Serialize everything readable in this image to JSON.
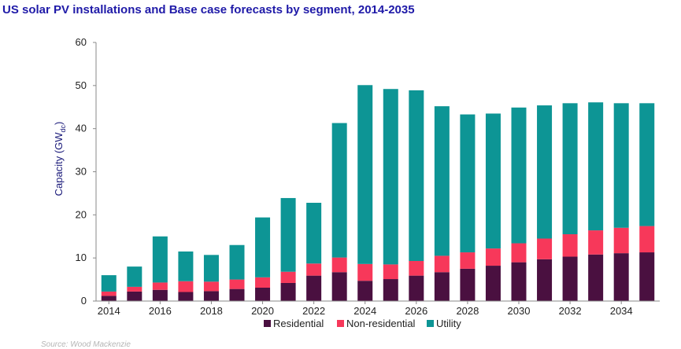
{
  "title": "US solar PV installations and Base case forecasts by segment, 2014-2035",
  "source": "Source: Wood Mackenzie",
  "colors": {
    "Residential": "#4a1040",
    "Non-residential": "#f7385a",
    "Utility": "#0d9595",
    "axis": "#888888",
    "title": "#1f1aa8"
  },
  "chart_data": {
    "type": "bar",
    "stacked": true,
    "title": "US solar PV installations and Base case forecasts by segment, 2014-2035",
    "ylabel_main": "Capacity (GW",
    "ylabel_sub": "dc",
    "ylabel_close": ")",
    "xlabel": "",
    "ylim": [
      0,
      60
    ],
    "yticks": [
      "0",
      "10",
      "20",
      "30",
      "40",
      "50",
      "60"
    ],
    "categories": [
      2014,
      2015,
      2016,
      2017,
      2018,
      2019,
      2020,
      2021,
      2022,
      2023,
      2024,
      2025,
      2026,
      2027,
      2028,
      2029,
      2030,
      2031,
      2032,
      2033,
      2034,
      2035
    ],
    "xtick_labels": [
      "2014",
      "2016",
      "2018",
      "2020",
      "2022",
      "2024",
      "2026",
      "2028",
      "2030",
      "2032",
      "2034"
    ],
    "legend_position": "bottom",
    "grid": false,
    "series": [
      {
        "name": "Residential",
        "values": [
          1.2,
          2.2,
          2.6,
          2.1,
          2.3,
          2.8,
          3.1,
          4.2,
          5.9,
          6.7,
          4.7,
          5.1,
          5.9,
          6.7,
          7.5,
          8.2,
          9.0,
          9.7,
          10.3,
          10.8,
          11.1,
          11.3
        ]
      },
      {
        "name": "Non-residential",
        "values": [
          1.0,
          1.1,
          1.7,
          2.5,
          2.2,
          2.2,
          2.4,
          2.6,
          2.8,
          3.4,
          3.9,
          3.4,
          3.4,
          3.8,
          3.8,
          4.0,
          4.4,
          4.8,
          5.2,
          5.6,
          5.9,
          6.1
        ]
      },
      {
        "name": "Utility",
        "values": [
          3.8,
          4.7,
          10.7,
          6.9,
          6.2,
          8.0,
          13.9,
          17.1,
          14.1,
          31.2,
          41.5,
          40.7,
          39.6,
          34.7,
          32.0,
          31.3,
          31.5,
          30.9,
          30.4,
          29.7,
          28.9,
          28.5
        ]
      }
    ]
  }
}
